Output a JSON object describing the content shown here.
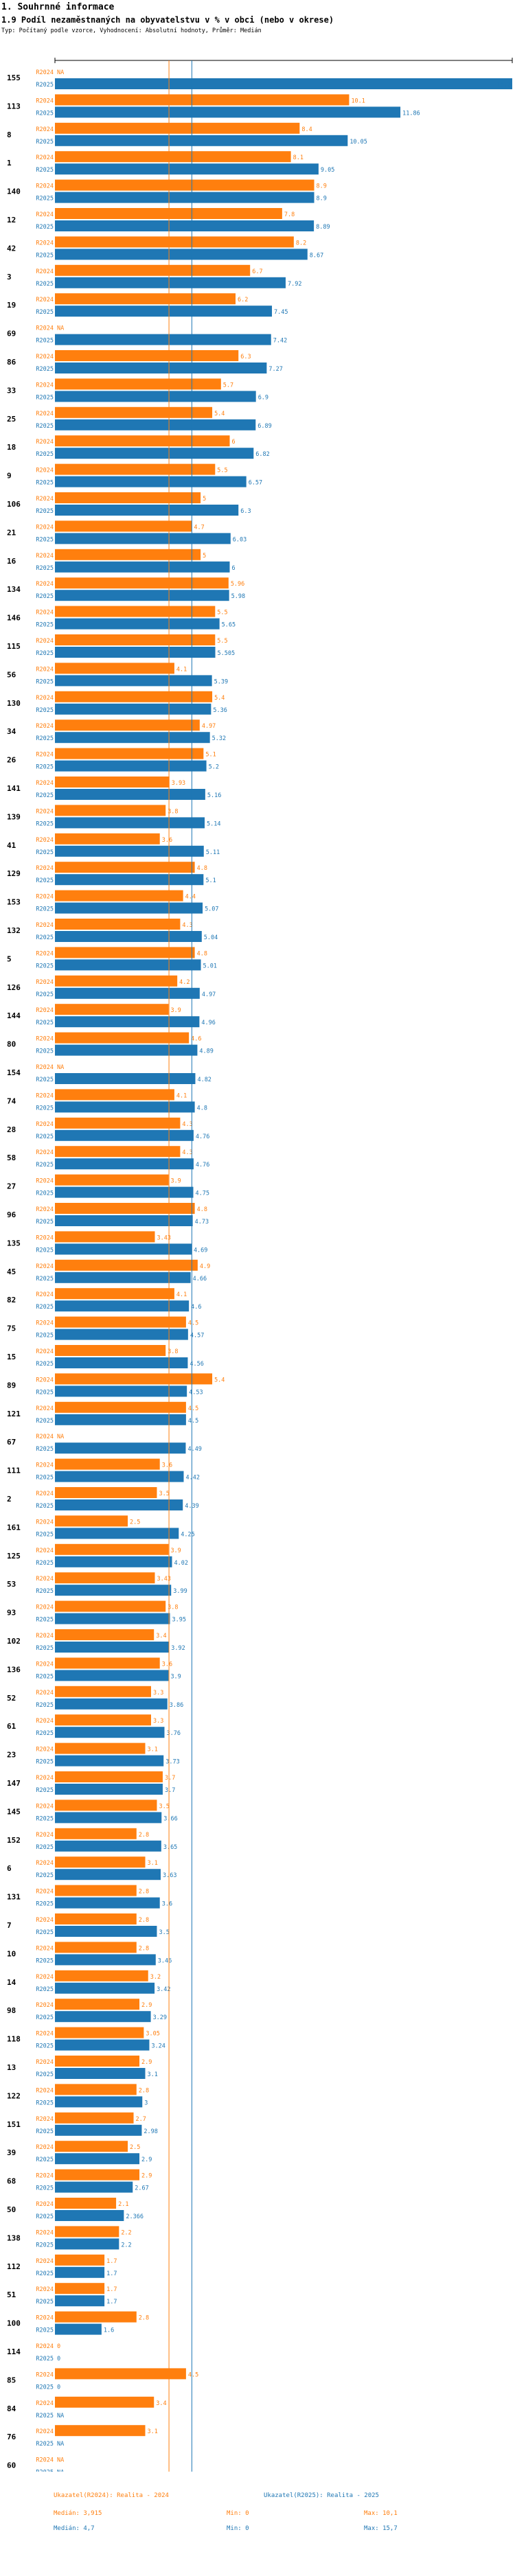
{
  "header": {
    "section": "1. Souhrnné informace",
    "title": "1.9 Podíl nezaměstnaných na obyvatelstvu v % v obci (nebo v okrese)",
    "subtitle": "Typ: Počítaný podle vzorce, Vyhodnocení: Absolutní hodnoty, Průměr: Medián"
  },
  "colors": {
    "r2024": "#ff7f0e",
    "r2025": "#1f77b4",
    "axis": "#000000"
  },
  "chart_data": {
    "type": "bar",
    "orientation": "horizontal",
    "title": "1.9 Podíl nezaměstnaných na obyvatelstvu v % v obci (nebo v okrese)",
    "xlim": [
      0,
      15.7
    ],
    "series_names": [
      "R2024",
      "R2025"
    ],
    "na_label": "NA",
    "groups": [
      {
        "id": "155",
        "r2024": null,
        "r2025": 15.7
      },
      {
        "id": "113",
        "r2024": 10.1,
        "r2025": 11.86
      },
      {
        "id": "8",
        "r2024": 8.4,
        "r2025": 10.05
      },
      {
        "id": "1",
        "r2024": 8.1,
        "r2025": 9.05
      },
      {
        "id": "140",
        "r2024": 8.9,
        "r2025": 8.9
      },
      {
        "id": "12",
        "r2024": 7.8,
        "r2025": 8.89
      },
      {
        "id": "42",
        "r2024": 8.2,
        "r2025": 8.67
      },
      {
        "id": "3",
        "r2024": 6.7,
        "r2025": 7.92
      },
      {
        "id": "19",
        "r2024": 6.2,
        "r2025": 7.45
      },
      {
        "id": "69",
        "r2024": null,
        "r2025": 7.42
      },
      {
        "id": "86",
        "r2024": 6.3,
        "r2025": 7.27
      },
      {
        "id": "33",
        "r2024": 5.7,
        "r2025": 6.9
      },
      {
        "id": "25",
        "r2024": 5.4,
        "r2025": 6.89
      },
      {
        "id": "18",
        "r2024": 6.0,
        "r2025": 6.82
      },
      {
        "id": "9",
        "r2024": 5.5,
        "r2025": 6.57
      },
      {
        "id": "106",
        "r2024": 5,
        "r2025": 6.3
      },
      {
        "id": "21",
        "r2024": 4.7,
        "r2025": 6.03
      },
      {
        "id": "16",
        "r2024": 5,
        "r2025": 6
      },
      {
        "id": "134",
        "r2024": 5.96,
        "r2025": 5.98
      },
      {
        "id": "146",
        "r2024": 5.5,
        "r2025": 5.65
      },
      {
        "id": "115",
        "r2024": 5.5,
        "r2025": 5.505
      },
      {
        "id": "56",
        "r2024": 4.1,
        "r2025": 5.39
      },
      {
        "id": "130",
        "r2024": 5.4,
        "r2025": 5.36
      },
      {
        "id": "34",
        "r2024": 4.97,
        "r2025": 5.32
      },
      {
        "id": "26",
        "r2024": 5.1,
        "r2025": 5.2
      },
      {
        "id": "141",
        "r2024": 3.93,
        "r2025": 5.16
      },
      {
        "id": "139",
        "r2024": 3.8,
        "r2025": 5.14
      },
      {
        "id": "41",
        "r2024": 3.6,
        "r2025": 5.11
      },
      {
        "id": "129",
        "r2024": 4.8,
        "r2025": 5.1
      },
      {
        "id": "153",
        "r2024": 4.4,
        "r2025": 5.07
      },
      {
        "id": "132",
        "r2024": 4.3,
        "r2025": 5.04
      },
      {
        "id": "5",
        "r2024": 4.8,
        "r2025": 5.01
      },
      {
        "id": "126",
        "r2024": 4.2,
        "r2025": 4.97
      },
      {
        "id": "144",
        "r2024": 3.9,
        "r2025": 4.96
      },
      {
        "id": "80",
        "r2024": 4.6,
        "r2025": 4.89
      },
      {
        "id": "154",
        "r2024": null,
        "r2025": 4.82
      },
      {
        "id": "74",
        "r2024": 4.1,
        "r2025": 4.8
      },
      {
        "id": "28",
        "r2024": 4.3,
        "r2025": 4.76
      },
      {
        "id": "58",
        "r2024": 4.3,
        "r2025": 4.76
      },
      {
        "id": "27",
        "r2024": 3.9,
        "r2025": 4.75
      },
      {
        "id": "96",
        "r2024": 4.8,
        "r2025": 4.73
      },
      {
        "id": "135",
        "r2024": 3.43,
        "r2025": 4.69
      },
      {
        "id": "45",
        "r2024": 4.9,
        "r2025": 4.66
      },
      {
        "id": "82",
        "r2024": 4.1,
        "r2025": 4.6
      },
      {
        "id": "75",
        "r2024": 4.5,
        "r2025": 4.57
      },
      {
        "id": "15",
        "r2024": 3.8,
        "r2025": 4.56
      },
      {
        "id": "89",
        "r2024": 5.4,
        "r2025": 4.53
      },
      {
        "id": "121",
        "r2024": 4.5,
        "r2025": 4.5
      },
      {
        "id": "67",
        "r2024": null,
        "r2025": 4.49
      },
      {
        "id": "111",
        "r2024": 3.6,
        "r2025": 4.42
      },
      {
        "id": "2",
        "r2024": 3.5,
        "r2025": 4.39
      },
      {
        "id": "161",
        "r2024": 2.5,
        "r2025": 4.25
      },
      {
        "id": "125",
        "r2024": 3.9,
        "r2025": 4.02
      },
      {
        "id": "53",
        "r2024": 3.43,
        "r2025": 3.99
      },
      {
        "id": "93",
        "r2024": 3.8,
        "r2025": 3.95
      },
      {
        "id": "102",
        "r2024": 3.4,
        "r2025": 3.92
      },
      {
        "id": "136",
        "r2024": 3.6,
        "r2025": 3.9
      },
      {
        "id": "52",
        "r2024": 3.3,
        "r2025": 3.86
      },
      {
        "id": "61",
        "r2024": 3.3,
        "r2025": 3.76
      },
      {
        "id": "23",
        "r2024": 3.1,
        "r2025": 3.73
      },
      {
        "id": "147",
        "r2024": 3.7,
        "r2025": 3.7
      },
      {
        "id": "145",
        "r2024": 3.5,
        "r2025": 3.66
      },
      {
        "id": "152",
        "r2024": 2.8,
        "r2025": 3.65
      },
      {
        "id": "6",
        "r2024": 3.1,
        "r2025": 3.63
      },
      {
        "id": "131",
        "r2024": 2.8,
        "r2025": 3.6
      },
      {
        "id": "7",
        "r2024": 2.8,
        "r2025": 3.5
      },
      {
        "id": "10",
        "r2024": 2.8,
        "r2025": 3.46
      },
      {
        "id": "14",
        "r2024": 3.2,
        "r2025": 3.42
      },
      {
        "id": "98",
        "r2024": 2.9,
        "r2025": 3.29
      },
      {
        "id": "118",
        "r2024": 3.05,
        "r2025": 3.24
      },
      {
        "id": "13",
        "r2024": 2.9,
        "r2025": 3.1
      },
      {
        "id": "122",
        "r2024": 2.8,
        "r2025": 3
      },
      {
        "id": "151",
        "r2024": 2.7,
        "r2025": 2.98
      },
      {
        "id": "39",
        "r2024": 2.5,
        "r2025": 2.9
      },
      {
        "id": "68",
        "r2024": 2.9,
        "r2025": 2.67
      },
      {
        "id": "50",
        "r2024": 2.1,
        "r2025": 2.366
      },
      {
        "id": "138",
        "r2024": 2.2,
        "r2025": 2.2
      },
      {
        "id": "112",
        "r2024": 1.7,
        "r2025": 1.7
      },
      {
        "id": "51",
        "r2024": 1.7,
        "r2025": 1.7
      },
      {
        "id": "100",
        "r2024": 2.8,
        "r2025": 1.6
      },
      {
        "id": "114",
        "r2024": 0,
        "r2025": 0
      },
      {
        "id": "85",
        "r2024": 4.5,
        "r2025": 0
      },
      {
        "id": "84",
        "r2024": 3.4,
        "r2025": null
      },
      {
        "id": "76",
        "r2024": 3.1,
        "r2025": null
      },
      {
        "id": "60",
        "r2024": null,
        "r2025": null
      }
    ],
    "reference_lines": [
      {
        "series": "R2024",
        "label": "Medián",
        "value": 3.915
      },
      {
        "series": "R2025",
        "label": "Medián",
        "value": 4.7
      }
    ]
  },
  "legend": {
    "r2024": {
      "name": "Ukazatel(R2024): Realita - 2024",
      "median": "Medián: 3,915",
      "min": "Min: 0",
      "max": "Max: 10,1"
    },
    "r2025": {
      "name": "Ukazatel(R2025): Realita - 2025",
      "median": "Medián: 4,7",
      "min": "Min: 0",
      "max": "Max: 15,7"
    }
  }
}
